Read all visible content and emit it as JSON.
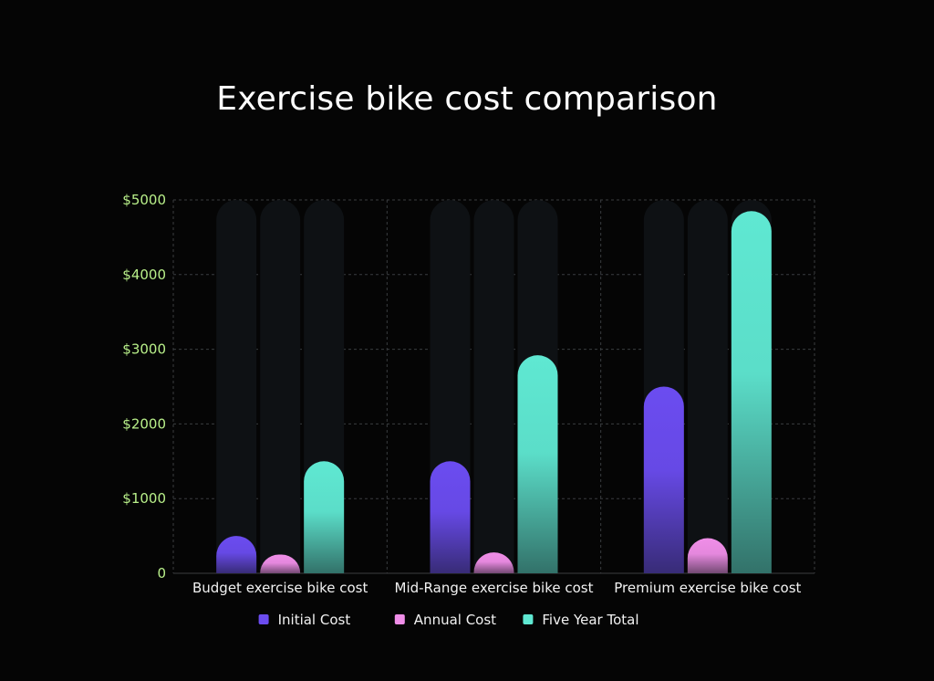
{
  "chart_data": {
    "type": "bar",
    "title": "Exercise bike cost comparison",
    "xlabel": "",
    "ylabel": "",
    "categories": [
      "Budget exercise bike cost",
      "Mid-Range exercise bike cost",
      "Premium exercise bike cost"
    ],
    "series": [
      {
        "name": "Initial Cost",
        "values": [
          500,
          1500,
          2500
        ],
        "color": "#6b4cf0"
      },
      {
        "name": "Annual Cost",
        "values": [
          250,
          280,
          470
        ],
        "color": "#f08ee8"
      },
      {
        "name": "Five Year Total",
        "values": [
          1500,
          2920,
          4850
        ],
        "color": "#5fe8d2"
      }
    ],
    "ylim": [
      0,
      5000
    ],
    "yticks": [
      0,
      1000,
      2000,
      3000,
      4000,
      5000
    ],
    "ytick_labels": [
      "0",
      "$1000",
      "$2000",
      "$3000",
      "$4000",
      "$5000"
    ],
    "grid": true,
    "legend_position": "bottom-center",
    "background_color": "#050505",
    "track_color": "#0e1114"
  }
}
